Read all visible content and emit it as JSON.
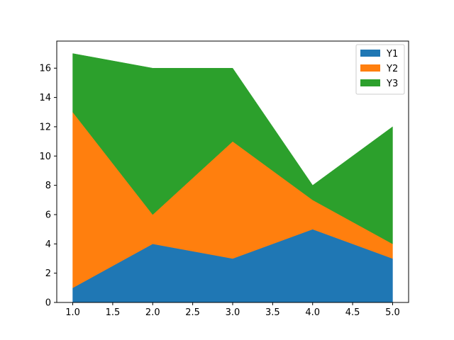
{
  "chart_data": {
    "type": "area",
    "stacked": true,
    "title": "",
    "xlabel": "",
    "ylabel": "",
    "x": [
      1,
      2,
      3,
      4,
      5
    ],
    "series": [
      {
        "name": "Y1",
        "values": [
          1,
          4,
          3,
          5,
          3
        ],
        "color": "#1f77b4"
      },
      {
        "name": "Y2",
        "values": [
          12,
          2,
          8,
          2,
          1
        ],
        "color": "#ff7f0e"
      },
      {
        "name": "Y3",
        "values": [
          4,
          10,
          5,
          1,
          8
        ],
        "color": "#2ca02c"
      }
    ],
    "xlim": [
      0.8,
      5.2
    ],
    "ylim": [
      0,
      17.85
    ],
    "xticks": [
      "1.0",
      "1.5",
      "2.0",
      "2.5",
      "3.0",
      "3.5",
      "4.0",
      "4.5",
      "5.0"
    ],
    "yticks": [
      "0",
      "2",
      "4",
      "6",
      "8",
      "10",
      "12",
      "14",
      "16"
    ],
    "grid": false,
    "legend_position": "top-right"
  }
}
